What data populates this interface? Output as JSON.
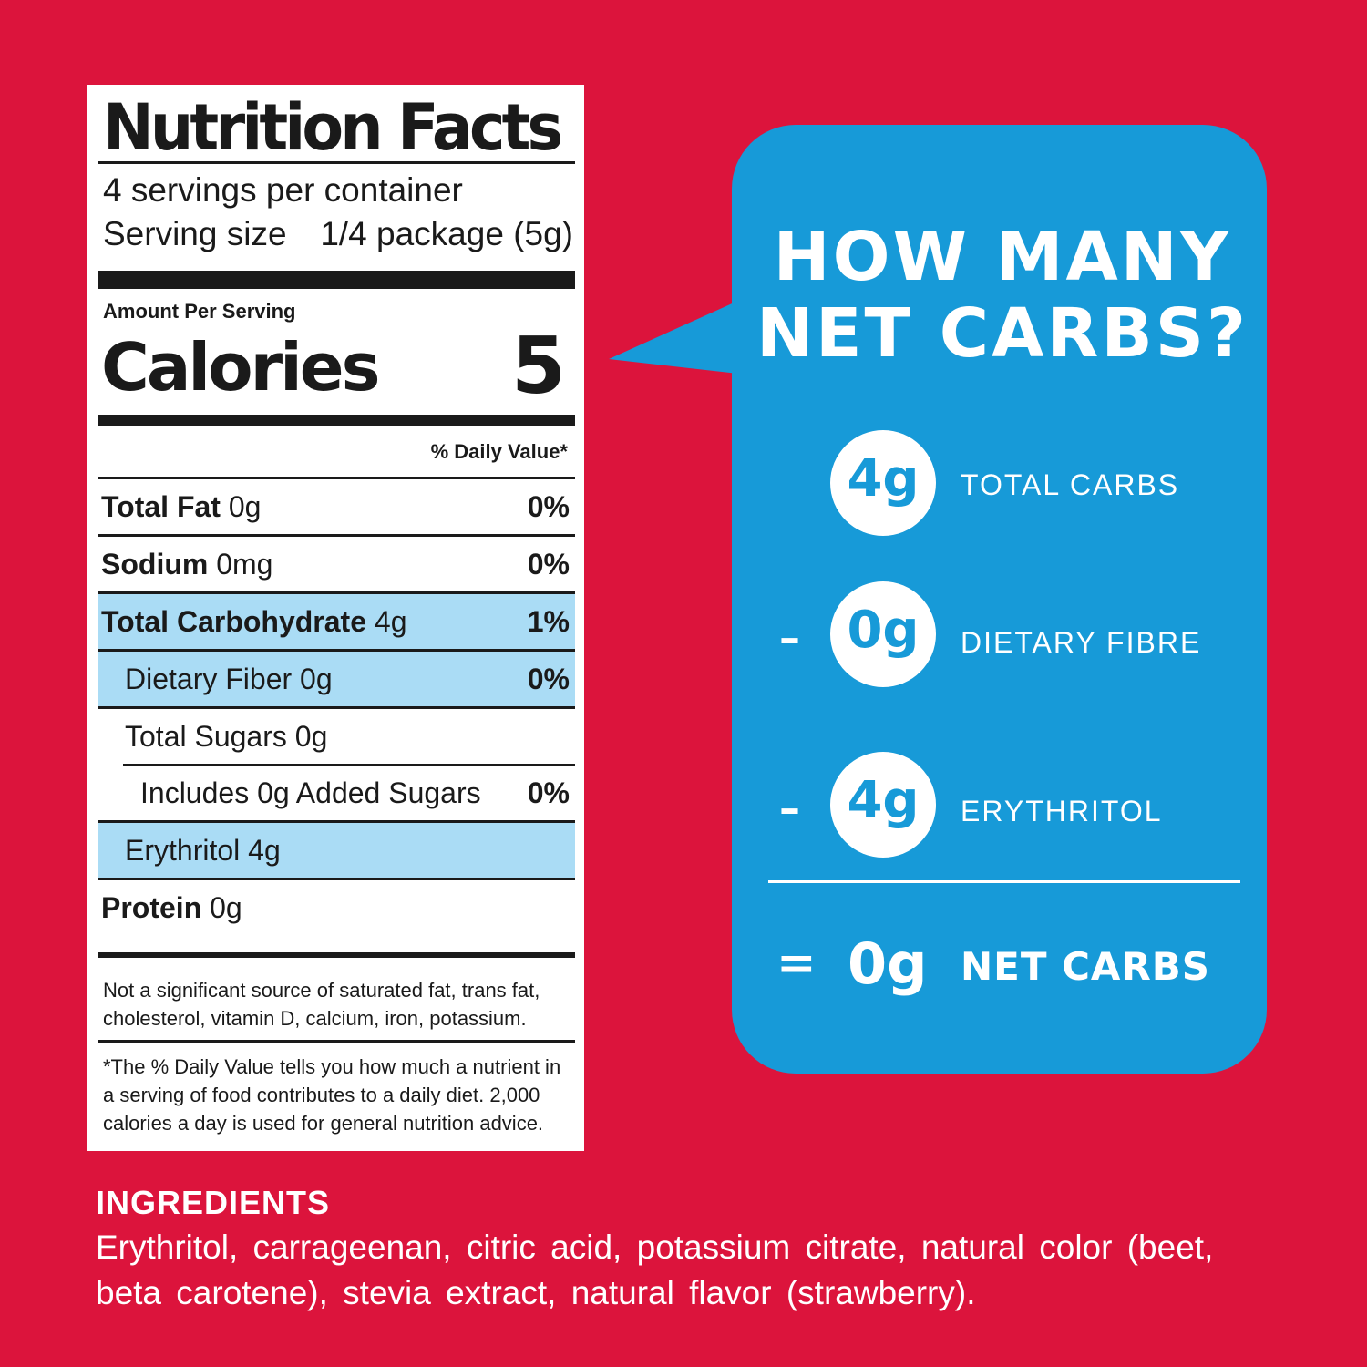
{
  "label": {
    "title": "Nutrition Facts",
    "servings": "4 servings per container",
    "serving_size_label": "Serving size",
    "serving_size_value": "1/4 package (5g)",
    "amount_per_serving": "Amount Per Serving",
    "calories_label": "Calories",
    "calories_value": "5",
    "daily_value_header": "% Daily Value*",
    "rows": [
      {
        "name": "Total Fat",
        "amount": " 0g",
        "dv": "0%"
      },
      {
        "name": "Sodium",
        "amount": " 0mg",
        "dv": "0%"
      },
      {
        "name": "Total Carbohydrate",
        "amount": " 4g",
        "dv": "1%"
      },
      {
        "name": "Dietary Fiber 0g",
        "amount": "",
        "dv": "0%"
      },
      {
        "name": "Total Sugars 0g",
        "amount": "",
        "dv": ""
      },
      {
        "name": "Includes 0g Added Sugars",
        "amount": "",
        "dv": "0%"
      },
      {
        "name": "Erythritol 4g",
        "amount": "",
        "dv": ""
      },
      {
        "name": "Protein",
        "amount": " 0g",
        "dv": ""
      }
    ],
    "footnote_1": "Not a significant source of saturated fat, trans fat, cholesterol, vitamin D, calcium, iron, potassium.",
    "footnote_2": "*The % Daily Value tells you how much a nutrient in a serving of food contributes to a daily diet. 2,000 calories a day is used for general nutrition advice."
  },
  "bubble": {
    "question_line1": "HOW MANY",
    "question_line2": "NET CARBS?",
    "items": [
      {
        "operator": "",
        "value": "4g",
        "label": "TOTAL CARBS"
      },
      {
        "operator": "–",
        "value": "0g",
        "label": "DIETARY FIBRE"
      },
      {
        "operator": "–",
        "value": "4g",
        "label": "ERYTHRITOL"
      }
    ],
    "result_operator": "=",
    "result_value": "0g",
    "result_label": "NET CARBS"
  },
  "ingredients": {
    "heading": "INGREDIENTS",
    "text": "Erythritol, carrageenan, citric acid, potassium citrate, natural color (beet, beta carotene), stevia extract, natural flavor (strawberry)."
  },
  "colors": {
    "background": "#dc143c",
    "bubble": "#179ad8",
    "highlight": "#aadcf5",
    "label": "#ffffff"
  }
}
